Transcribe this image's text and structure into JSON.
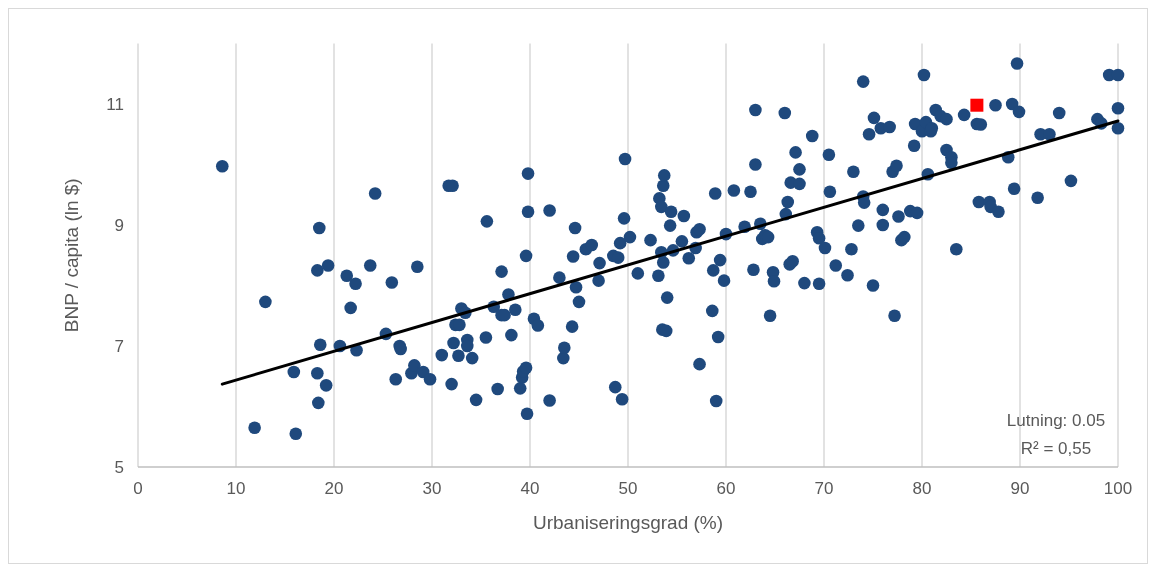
{
  "chart_data": {
    "type": "scatter",
    "xlabel": "Urbaniseringsgrad (%)",
    "ylabel": "BNP / capita (ln $)",
    "xlim": [
      0,
      100
    ],
    "ylim": [
      5,
      12
    ],
    "xticks": [
      0,
      10,
      20,
      30,
      40,
      50,
      60,
      70,
      80,
      90,
      100
    ],
    "yticks": [
      5,
      7,
      9,
      11
    ],
    "grid": "x",
    "marker": "circle",
    "annotations": [
      "Lutning: 0.05",
      "R² = 0,55"
    ],
    "series": [
      {
        "color": "#1f497d",
        "x": [
          8.6,
          11.9,
          13,
          15.9,
          16.1,
          18.3,
          18.5,
          18.6,
          18.3,
          18.4,
          19.2,
          19.4,
          20.6,
          21.3,
          21.7,
          22.2,
          22.3,
          24.2,
          23.7,
          25.3,
          25.9,
          26.3,
          26.7,
          26.8,
          27.9,
          28.2,
          28.5,
          29.1,
          29.8,
          31.0,
          31.7,
          32.1,
          32.0,
          32.2,
          32.4,
          32.7,
          32.8,
          33.0,
          33.4,
          33.6,
          33.6,
          34.1,
          34.5,
          35.5,
          35.6,
          36.3,
          36.7,
          37.1,
          37.1,
          37.4,
          37.8,
          38.1,
          38.5,
          39.0,
          39.2,
          39.3,
          39.6,
          39.6,
          39.7,
          39.8,
          39.8,
          40.4,
          40.8,
          42.0,
          42.0,
          43.0,
          43.4,
          43.5,
          44.3,
          44.4,
          44.6,
          44.7,
          45.0,
          45.7,
          46.3,
          47.0,
          47.1,
          48.5,
          48.7,
          49.0,
          49.2,
          49.4,
          49.6,
          49.7,
          50.2,
          51.0,
          52.3,
          53.1,
          53.2,
          53.4,
          53.4,
          53.5,
          53.6,
          53.6,
          53.7,
          53.9,
          54.0,
          54.3,
          54.4,
          54.6,
          55.5,
          55.7,
          56.2,
          56.9,
          57.0,
          57.3,
          57.3,
          58.6,
          58.7,
          58.9,
          59.0,
          59.2,
          59.4,
          59.8,
          60.0,
          60.8,
          61.9,
          62.5,
          62.8,
          63.0,
          63.0,
          63.5,
          63.7,
          64.0,
          64.3,
          64.5,
          64.8,
          64.9,
          66.0,
          66.1,
          66.3,
          66.5,
          66.6,
          66.8,
          67.1,
          67.5,
          67.5,
          68.0,
          68.8,
          69.3,
          69.5,
          69.5,
          70.1,
          70.5,
          70.6,
          71.2,
          72.4,
          72.8,
          73.0,
          73.5,
          74.0,
          74.0,
          74.1,
          74.6,
          75.0,
          75.1,
          75.8,
          76.0,
          76.0,
          76.7,
          77.0,
          77.2,
          77.4,
          77.6,
          77.9,
          78.2,
          78.8,
          79.2,
          79.3,
          79.5,
          80.0,
          80.2,
          80.4,
          80.6,
          80.9,
          81.0,
          81.4,
          81.9,
          82.5,
          82.5,
          83.0,
          83.0,
          83.5,
          84.3,
          85.6,
          85.8,
          86.0,
          86.9,
          87.0,
          87.5,
          87.8,
          88.8,
          89.2,
          89.4,
          89.7,
          89.9,
          91.8,
          92.1,
          93.0,
          94.0,
          95.2,
          97.9,
          98.3,
          99.1,
          100,
          100,
          100
        ],
        "values": [
          9.97,
          5.65,
          7.73,
          6.57,
          5.55,
          8.25,
          8.95,
          7.02,
          6.55,
          6.06,
          6.35,
          8.33,
          7.0,
          8.16,
          7.63,
          8.03,
          6.93,
          9.52,
          8.33,
          7.2,
          8.05,
          6.45,
          7.0,
          6.95,
          6.55,
          6.68,
          8.31,
          6.57,
          6.45,
          6.85,
          9.65,
          9.65,
          6.37,
          7.05,
          7.35,
          6.84,
          7.35,
          7.62,
          7.55,
          7.1,
          7.0,
          6.8,
          6.11,
          7.14,
          9.06,
          7.65,
          6.29,
          8.23,
          7.51,
          7.51,
          7.85,
          7.18,
          7.6,
          6.3,
          6.48,
          6.58,
          6.64,
          8.49,
          5.88,
          9.85,
          9.22,
          7.45,
          7.34,
          9.24,
          6.1,
          8.13,
          6.8,
          6.97,
          7.32,
          8.48,
          8.95,
          7.97,
          7.73,
          8.6,
          8.67,
          8.08,
          8.37,
          8.49,
          6.32,
          8.46,
          8.7,
          6.12,
          9.11,
          10.09,
          8.8,
          8.2,
          8.75,
          8.16,
          9.44,
          9.3,
          8.55,
          7.27,
          8.38,
          9.65,
          9.82,
          7.25,
          7.8,
          8.99,
          9.22,
          8.58,
          8.73,
          9.15,
          8.45,
          8.62,
          8.88,
          6.7,
          8.93,
          7.58,
          8.25,
          9.52,
          6.09,
          7.15,
          8.42,
          8.08,
          8.85,
          9.57,
          8.97,
          9.55,
          8.26,
          10.0,
          10.9,
          9.02,
          8.77,
          8.83,
          8.8,
          7.5,
          8.22,
          8.07,
          10.85,
          9.18,
          9.38,
          8.35,
          9.7,
          8.4,
          10.2,
          9.68,
          9.92,
          8.04,
          10.47,
          8.88,
          8.78,
          8.03,
          8.62,
          10.16,
          9.55,
          8.33,
          8.17,
          8.6,
          9.88,
          8.99,
          11.37,
          9.47,
          9.37,
          10.5,
          8.0,
          10.77,
          10.6,
          9.25,
          9.0,
          10.62,
          9.88,
          7.5,
          9.98,
          9.14,
          8.75,
          8.8,
          9.23,
          10.31,
          10.67,
          9.2,
          10.55,
          11.48,
          10.7,
          9.84,
          10.55,
          10.6,
          10.9,
          10.8,
          10.75,
          10.24,
          10.12,
          10.03,
          8.6,
          10.82,
          10.67,
          9.38,
          10.66,
          9.38,
          9.3,
          10.98,
          9.22,
          10.12,
          11.0,
          9.6,
          11.67,
          10.87,
          9.45,
          10.5,
          10.5,
          10.85,
          9.73,
          10.75,
          10.68,
          11.48,
          11.48,
          10.93,
          10.6
        ]
      },
      {
        "color": "#ff0000",
        "marker": "square",
        "x": [
          85.6
        ],
        "values": [
          10.98
        ]
      },
      {
        "type": "line",
        "color": "#000000",
        "marker": "none",
        "line_style": "solid",
        "x": [
          8.6,
          100
        ],
        "values": [
          6.37,
          10.72
        ]
      }
    ]
  }
}
